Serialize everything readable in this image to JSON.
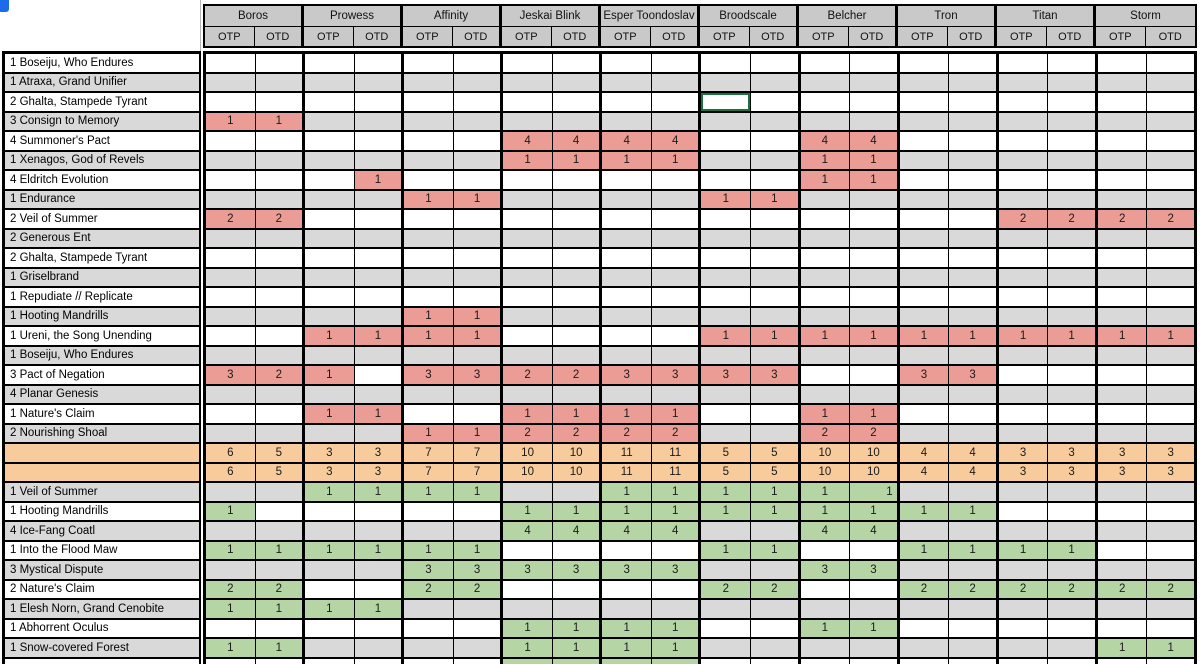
{
  "decks": [
    "Boros",
    "Prowess",
    "Affinity",
    "Jeskai Blink",
    "Esper Toondoslav",
    "Broodscale",
    "Belcher",
    "Tron",
    "Titan",
    "Storm"
  ],
  "subcols": [
    "OTP",
    "OTD"
  ],
  "colors": {
    "red": "#ea9c95",
    "green": "#b5d6a4",
    "orange": "#f8cb9d",
    "gray_row": "#d9d9d9",
    "header_gray": "#c9c9c9",
    "selection": "#1a7243",
    "corner_mark": "#1b6ce8"
  },
  "out_rows": [
    {
      "label": "1 Boseiju, Who Endures",
      "shade": "white",
      "cells": {}
    },
    {
      "label": "1 Atraxa, Grand Unifier",
      "shade": "gray",
      "cells": {}
    },
    {
      "label": "2 Ghalta, Stampede Tyrant",
      "shade": "white",
      "cells": {},
      "selected_col": 10
    },
    {
      "label": "3 Consign to Memory",
      "shade": "gray",
      "cells": {
        "0": 1,
        "1": 1
      }
    },
    {
      "label": "4 Summoner's Pact",
      "shade": "white",
      "cells": {
        "6": 4,
        "7": 4,
        "8": 4,
        "9": 4,
        "12": 4,
        "13": 4
      }
    },
    {
      "label": "1 Xenagos, God of Revels",
      "shade": "gray",
      "cells": {
        "6": 1,
        "7": 1,
        "8": 1,
        "9": 1,
        "12": 1,
        "13": 1
      }
    },
    {
      "label": "4 Eldritch Evolution",
      "shade": "white",
      "cells": {
        "3": 1,
        "12": 1,
        "13": 1
      }
    },
    {
      "label": "1 Endurance",
      "shade": "gray",
      "cells": {
        "4": 1,
        "5": 1,
        "10": 1,
        "11": 1
      }
    },
    {
      "label": "2 Veil of Summer",
      "shade": "white",
      "cells": {
        "0": 2,
        "1": 2,
        "16": 2,
        "17": 2,
        "18": 2,
        "19": 2
      }
    },
    {
      "label": "2 Generous Ent",
      "shade": "gray",
      "cells": {}
    },
    {
      "label": "2 Ghalta, Stampede Tyrant",
      "shade": "white",
      "cells": {}
    },
    {
      "label": "1 Griselbrand",
      "shade": "gray",
      "cells": {}
    },
    {
      "label": "1 Repudiate // Replicate",
      "shade": "white",
      "cells": {}
    },
    {
      "label": "1 Hooting Mandrills",
      "shade": "gray",
      "cells": {
        "4": 1,
        "5": 1
      }
    },
    {
      "label": "1 Ureni, the Song Unending",
      "shade": "white",
      "cells": {
        "2": 1,
        "3": 1,
        "4": 1,
        "5": 1,
        "10": 1,
        "11": 1,
        "12": 1,
        "13": 1,
        "14": 1,
        "15": 1,
        "16": 1,
        "17": 1,
        "18": 1,
        "19": 1
      }
    },
    {
      "label": "1 Boseiju, Who Endures",
      "shade": "gray",
      "cells": {}
    },
    {
      "label": "3 Pact of Negation",
      "shade": "white",
      "cells": {
        "0": 3,
        "1": 2,
        "2": 1,
        "4": 3,
        "5": 3,
        "6": 2,
        "7": 2,
        "8": 3,
        "9": 3,
        "10": 3,
        "11": 3,
        "14": 3,
        "15": 3
      }
    },
    {
      "label": "4 Planar Genesis",
      "shade": "gray",
      "cells": {}
    },
    {
      "label": "1 Nature's Claim",
      "shade": "white",
      "cells": {
        "2": 1,
        "3": 1,
        "6": 1,
        "7": 1,
        "8": 1,
        "9": 1,
        "12": 1,
        "13": 1
      }
    },
    {
      "label": "2 Nourishing Shoal",
      "shade": "gray",
      "cells": {
        "4": 1,
        "5": 1,
        "6": 2,
        "7": 2,
        "8": 2,
        "9": 2,
        "12": 2,
        "13": 2
      }
    }
  ],
  "total_rows": [
    [
      6,
      5,
      3,
      3,
      7,
      7,
      10,
      10,
      11,
      11,
      5,
      5,
      10,
      10,
      4,
      4,
      3,
      3,
      3,
      3
    ],
    [
      6,
      5,
      3,
      3,
      7,
      7,
      10,
      10,
      11,
      11,
      5,
      5,
      10,
      10,
      4,
      4,
      3,
      3,
      3,
      3
    ]
  ],
  "in_rows": [
    {
      "label": "1 Veil of Summer",
      "shade": "gray",
      "cells": {
        "2": 1,
        "3": 1,
        "4": 1,
        "5": 1,
        "8": 1,
        "9": 1,
        "10": 1,
        "11": 1,
        "12": 1,
        "13": 1
      },
      "right_align": [
        13
      ]
    },
    {
      "label": "1 Hooting Mandrills",
      "shade": "white",
      "cells": {
        "0": 1,
        "6": 1,
        "7": 1,
        "8": 1,
        "9": 1,
        "10": 1,
        "11": 1,
        "12": 1,
        "13": 1,
        "14": 1,
        "15": 1
      }
    },
    {
      "label": "4 Ice-Fang Coatl",
      "shade": "gray",
      "cells": {
        "6": 4,
        "7": 4,
        "8": 4,
        "9": 4,
        "12": 4,
        "13": 4
      }
    },
    {
      "label": "1 Into the Flood Maw",
      "shade": "white",
      "cells": {
        "0": 1,
        "1": 1,
        "2": 1,
        "3": 1,
        "4": 1,
        "5": 1,
        "10": 1,
        "11": 1,
        "14": 1,
        "15": 1,
        "16": 1,
        "17": 1
      }
    },
    {
      "label": "3 Mystical Dispute",
      "shade": "gray",
      "cells": {
        "4": 3,
        "5": 3,
        "6": 3,
        "7": 3,
        "8": 3,
        "9": 3,
        "12": 3,
        "13": 3
      }
    },
    {
      "label": "2 Nature's Claim",
      "shade": "white",
      "cells": {
        "0": 2,
        "1": 2,
        "4": 2,
        "5": 2,
        "10": 2,
        "11": 2,
        "14": 2,
        "15": 2,
        "16": 2,
        "17": 2,
        "18": 2,
        "19": 2
      }
    },
    {
      "label": "1 Elesh Norn, Grand Cenobite",
      "shade": "gray",
      "cells": {
        "0": 1,
        "1": 1,
        "2": 1,
        "3": 1
      }
    },
    {
      "label": "1 Abhorrent Oculus",
      "shade": "white",
      "cells": {
        "6": 1,
        "7": 1,
        "8": 1,
        "9": 1,
        "12": 1,
        "13": 1
      }
    },
    {
      "label": "1 Snow-covered Forest",
      "shade": "gray",
      "cells": {
        "0": 1,
        "1": 1,
        "6": 1,
        "7": 1,
        "8": 1,
        "9": 1,
        "18": 1,
        "19": 1
      }
    }
  ],
  "partial_row": {
    "shade": "white",
    "green_cols": [
      6,
      7,
      8,
      9
    ]
  }
}
